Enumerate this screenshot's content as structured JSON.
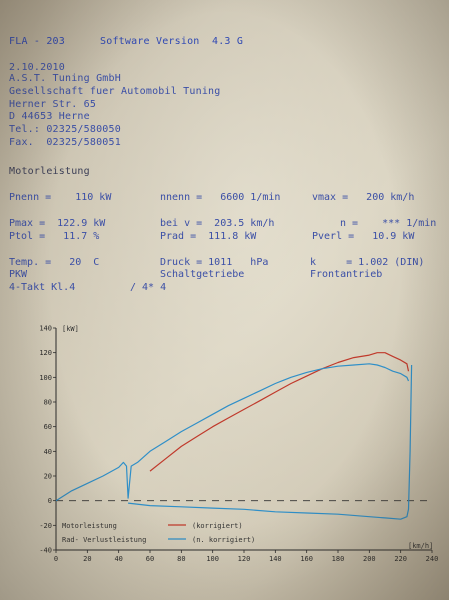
{
  "header": {
    "model": "FLA - 203",
    "software": "Software Version  4.3 G"
  },
  "company": {
    "date": "2.10.2010",
    "name": "A.S.T. Tuning GmbH",
    "description": "Gesellschaft fuer Automobil Tuning",
    "street": "Herner Str. 65",
    "city": "D 44653 Herne",
    "tel": "Tel.: 02325/580050",
    "fax": "Fax.  02325/580051"
  },
  "section_title": "Motorleistung",
  "results": {
    "pnenn": "Pnenn =    110 kW",
    "nnenn": "nnenn =   6600 1/min",
    "vmax": "vmax =   200 km/h",
    "pmax": "Pmax =  122.9 kW",
    "beiv": "bei v =  203.5 km/h",
    "n": "n =    *** 1/min",
    "ptol": "Ptol =   11.7 %",
    "prad": "Prad =  111.8 kW",
    "pverl": "Pverl =   10.9 kW",
    "temp": "Temp. =   20  C",
    "druck": "Druck = 1011   hPa",
    "k": "k     = 1.002 (DIN)",
    "vehicle": "PKW",
    "gearbox": "Schaltgetriebe",
    "drive": "Frontantrieb",
    "engine": "4-Takt Kl.4",
    "cylinders": "/ 4* 4"
  },
  "chart_data": {
    "type": "line",
    "y_unit": "[kW]",
    "x_unit": "[km/h]",
    "xlim": [
      0,
      240
    ],
    "ylim": [
      -40,
      140
    ],
    "x_ticks": [
      "0",
      "20",
      "40",
      "60",
      "80",
      "100",
      "120",
      "140",
      "160",
      "180",
      "200",
      "220",
      "240"
    ],
    "y_ticks": [
      "140",
      "120",
      "100",
      "80",
      "60",
      "40",
      "20",
      "0",
      "-20",
      "-40"
    ],
    "legend": {
      "motor_label": "Motorleistung",
      "motor_korr": "(korrigiert)",
      "rad_label": "Rad- Verlustleistung",
      "rad_korr": "(n. korrigiert)"
    },
    "colors": {
      "motor": "#c0392b",
      "rad": "#2f8fc8",
      "axis": "#2a2a2a",
      "zero": "#333333"
    },
    "series": [
      {
        "key": "motor",
        "x": [
          60,
          70,
          80,
          90,
          100,
          110,
          120,
          130,
          140,
          150,
          160,
          170,
          180,
          190,
          200,
          205,
          210,
          215,
          220,
          224,
          225
        ],
        "values": [
          24,
          34,
          44,
          52,
          60,
          67,
          74,
          81,
          88,
          95,
          101,
          107,
          112,
          116,
          118,
          120,
          120,
          117,
          114,
          111,
          105
        ]
      },
      {
        "key": "rad",
        "x": [
          0,
          10,
          20,
          30,
          40,
          43,
          45,
          46,
          48,
          52,
          60,
          70,
          80,
          90,
          100,
          110,
          120,
          130,
          140,
          150,
          160,
          170,
          180,
          190,
          200,
          205,
          210,
          215,
          220,
          224,
          225
        ],
        "values": [
          0,
          8,
          14,
          20,
          27,
          31,
          28,
          2,
          28,
          31,
          40,
          48,
          56,
          63,
          70,
          77,
          83,
          89,
          95,
          100,
          104,
          107,
          109,
          110,
          111,
          110,
          108,
          105,
          103,
          100,
          97
        ]
      },
      {
        "key": "verlust",
        "x": [
          46,
          60,
          80,
          100,
          120,
          140,
          160,
          180,
          200,
          210,
          220,
          224,
          225,
          226,
          227
        ],
        "values": [
          -2,
          -4,
          -5,
          -6,
          -7,
          -9,
          -10,
          -11,
          -13,
          -14,
          -15,
          -13,
          -7,
          40,
          110
        ]
      }
    ]
  }
}
